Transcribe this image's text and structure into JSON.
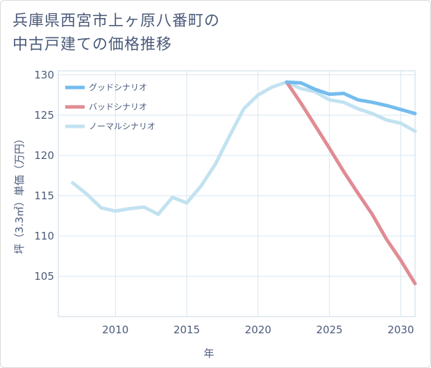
{
  "title_lines": [
    "兵庫県西宮市上ヶ原八番町の",
    "中古戸建ての価格推移"
  ],
  "colors": {
    "good": "#74bcee",
    "bad": "#e08c94",
    "normal": "#c2e2f0",
    "grid": "#d6e6f0",
    "text": "#4a5a7a"
  },
  "chart_data": {
    "type": "line",
    "title": "兵庫県西宮市上ヶ原八番町の中古戸建ての価格推移",
    "xlabel": "年",
    "ylabel": "坪（3.3㎡）単価（万円）",
    "xlim": [
      2006,
      2031
    ],
    "ylim": [
      100,
      130.5
    ],
    "xticks": [
      2010,
      2015,
      2020,
      2025,
      2030
    ],
    "yticks": [
      105,
      110,
      115,
      120,
      125,
      130
    ],
    "legend_position": "top-left",
    "series": [
      {
        "name": "グッドシナリオ",
        "key": "good",
        "x": [
          2022,
          2023,
          2024,
          2025,
          2026,
          2027,
          2028,
          2029,
          2030,
          2031
        ],
        "y": [
          129.1,
          129.0,
          128.2,
          127.6,
          127.7,
          126.9,
          126.6,
          126.2,
          125.7,
          125.2
        ]
      },
      {
        "name": "バッドシナリオ",
        "key": "bad",
        "x": [
          2022,
          2023,
          2024,
          2025,
          2026,
          2027,
          2028,
          2029,
          2030,
          2031
        ],
        "y": [
          129.1,
          126.5,
          123.7,
          120.9,
          118.0,
          115.3,
          112.7,
          109.6,
          107.0,
          104.1
        ]
      },
      {
        "name": "ノーマルシナリオ",
        "key": "normal",
        "x": [
          2007,
          2008,
          2009,
          2010,
          2011,
          2012,
          2013,
          2014,
          2015,
          2016,
          2017,
          2018,
          2019,
          2020,
          2021,
          2022,
          2023,
          2024,
          2025,
          2026,
          2027,
          2028,
          2029,
          2030,
          2031
        ],
        "y": [
          116.6,
          115.2,
          113.5,
          113.1,
          113.4,
          113.6,
          112.7,
          114.8,
          114.1,
          116.2,
          118.9,
          122.4,
          125.8,
          127.5,
          128.5,
          129.1,
          128.3,
          127.9,
          126.9,
          126.6,
          125.8,
          125.2,
          124.4,
          124.0,
          123.0
        ]
      }
    ]
  }
}
